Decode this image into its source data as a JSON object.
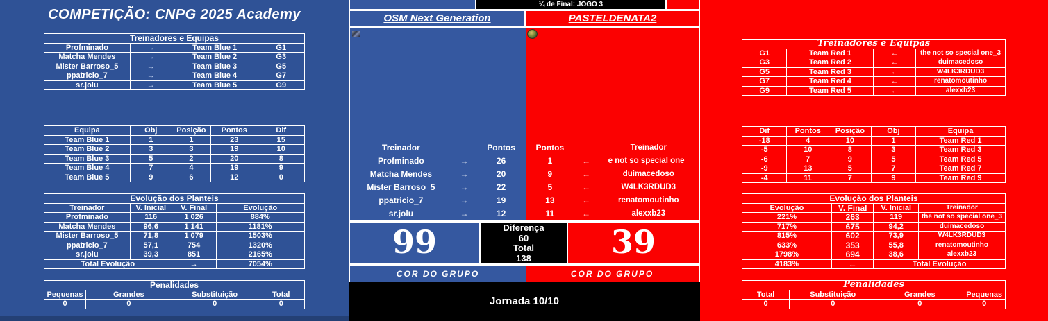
{
  "colors": {
    "side_blue": "#2F5296",
    "center_blue": "#3558A0",
    "side_red": "#FE0000",
    "center_red": "#FB0101",
    "black": "#000000",
    "white": "#FFFFFF"
  },
  "left": {
    "title": "COMPETIÇÃO: CNPG 2025 Academy",
    "coaches_table": {
      "rows": [
        [
          {
            "t": "Treinadores e Equipas",
            "span": 4
          }
        ],
        [
          "Profminado",
          "→",
          "Team Blue 1",
          "G1"
        ],
        [
          "Matcha Mendes",
          "→",
          "Team Blue 2",
          "G3"
        ],
        [
          "Mister Barroso_5",
          "→",
          "Team Blue 3",
          "G5"
        ],
        [
          "ppatricio_7",
          "→",
          "Team Blue 4",
          "G7"
        ],
        [
          "sr.jolu",
          "→",
          "Team Blue 5",
          "G9"
        ]
      ]
    },
    "standings_table": {
      "rows": [
        [
          "Equipa",
          "Obj",
          "Posição",
          "Pontos",
          "Dif"
        ],
        [
          "Team Blue 1",
          "1",
          "1",
          "23",
          "15"
        ],
        [
          "Team Blue 2",
          "3",
          "3",
          "19",
          "10"
        ],
        [
          "Team Blue 3",
          "5",
          "2",
          "20",
          "8"
        ],
        [
          "Team Blue 4",
          "7",
          "4",
          "19",
          "9"
        ],
        [
          "Team Blue 5",
          "9",
          "6",
          "12",
          "0"
        ]
      ]
    },
    "evolution_table": {
      "rows": [
        [
          {
            "t": "Evolução dos Planteis",
            "span": 4
          }
        ],
        [
          "Treinador",
          "V. Inicial",
          "V. Final",
          "Evolução"
        ],
        [
          "Profminado",
          "116",
          "1 026",
          "884%"
        ],
        [
          "Matcha Mendes",
          "96,6",
          "1 141",
          "1181%"
        ],
        [
          "Mister Barroso_5",
          "71,8",
          "1 079",
          "1503%"
        ],
        [
          "ppatricio_7",
          "57,1",
          "754",
          "1320%"
        ],
        [
          "sr.jolu",
          "39,3",
          "851",
          "2165%"
        ],
        [
          {
            "t": "Total Evolução",
            "span": 2
          },
          "→",
          "7054%"
        ]
      ]
    },
    "penalties_table": {
      "rows": [
        [
          {
            "t": "Penalidades",
            "span": 4
          }
        ],
        [
          "Pequenas",
          "Grandes",
          "Substituição",
          "Total"
        ],
        [
          "0",
          "0",
          "0",
          "0"
        ]
      ]
    }
  },
  "center": {
    "stage": "¼ de Final: JOGO 3",
    "home": {
      "name": "OSM Next Generation",
      "score": "99",
      "group_label": "COR DO GRUPO",
      "list": [
        [
          "Treinador",
          "",
          "Pontos"
        ],
        [
          "Profminado",
          "→",
          "26"
        ],
        [
          "Matcha Mendes",
          "→",
          "20"
        ],
        [
          "Mister Barroso_5",
          "→",
          "22"
        ],
        [
          "ppatricio_7",
          "→",
          "19"
        ],
        [
          "sr.jolu",
          "→",
          "12"
        ]
      ]
    },
    "away": {
      "name": "PASTELDENATA2",
      "score": "39",
      "group_label": "COR DO GRUPO",
      "list": [
        [
          "Pontos",
          "",
          "Treinador"
        ],
        [
          "1",
          "←",
          "e not so special one_"
        ],
        [
          "9",
          "←",
          "duimacedoso"
        ],
        [
          "5",
          "←",
          "W4LK3RDUD3"
        ],
        [
          "13",
          "←",
          "renatomoutinho"
        ],
        [
          "11",
          "←",
          "alexxb23"
        ]
      ]
    },
    "diff": {
      "lines": [
        "Diferença",
        "60",
        "Total",
        "138"
      ]
    },
    "jornada": "Jornada 10/10"
  },
  "right": {
    "coaches_table": {
      "rows": [
        [
          {
            "t": "Treinadores e Equipas",
            "span": 4
          }
        ],
        [
          "G1",
          "Team Red 1",
          "←",
          "the not so special one_3"
        ],
        [
          "G3",
          "Team Red 2",
          "←",
          "duimacedoso"
        ],
        [
          "G5",
          "Team Red 3",
          "←",
          "W4LK3RDUD3"
        ],
        [
          "G7",
          "Team Red 4",
          "←",
          "renatomoutinho"
        ],
        [
          "G9",
          "Team Red 5",
          "←",
          "alexxb23"
        ]
      ]
    },
    "standings_table": {
      "rows": [
        [
          "Dif",
          "Pontos",
          "Posição",
          "Obj",
          "Equipa"
        ],
        [
          "-18",
          "4",
          "10",
          "1",
          "Team Red 1"
        ],
        [
          "-5",
          "10",
          "8",
          "3",
          "Team Red 3"
        ],
        [
          "-6",
          "7",
          "9",
          "5",
          "Team Red 5"
        ],
        [
          "-9",
          "13",
          "5",
          "7",
          "Team Red 7"
        ],
        [
          "-4",
          "11",
          "7",
          "9",
          "Team Red 9"
        ]
      ]
    },
    "evolution_table": {
      "rows": [
        [
          {
            "t": "Evolução dos Planteis",
            "span": 4
          }
        ],
        [
          "Evolução",
          "V. Final",
          "V. Inicial",
          "Treinador"
        ],
        [
          "221%",
          "263",
          "119",
          "the not so special one_3"
        ],
        [
          "717%",
          "675",
          "94,2",
          "duimacedoso"
        ],
        [
          "815%",
          "602",
          "73,9",
          "W4LK3RDUD3"
        ],
        [
          "633%",
          "353",
          "55,8",
          "renatomoutinho"
        ],
        [
          "1798%",
          "694",
          "38,6",
          "alexxb23"
        ],
        [
          "4183%",
          "←",
          {
            "t": "Total Evolução",
            "span": 2
          }
        ]
      ]
    },
    "penalties_table": {
      "rows": [
        [
          {
            "t": "Penalidades",
            "span": 4
          }
        ],
        [
          "Total",
          "Substituição",
          "Grandes",
          "Pequenas"
        ],
        [
          "0",
          "0",
          "0",
          "0"
        ]
      ]
    }
  }
}
